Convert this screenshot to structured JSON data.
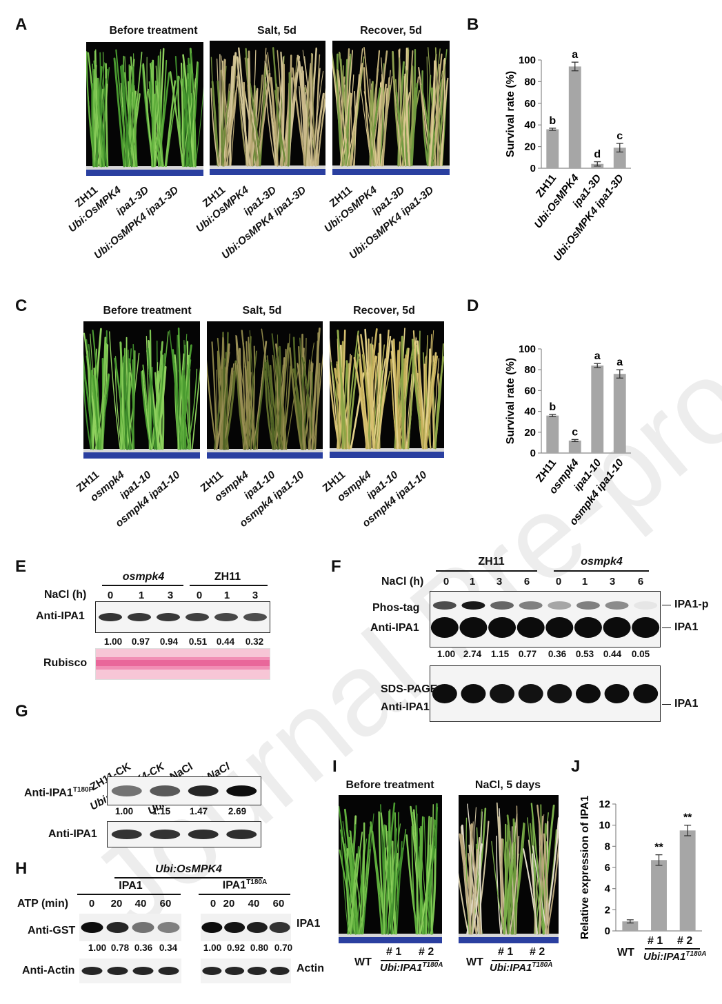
{
  "watermark": "Journal Pre-proof",
  "panels": {
    "A": {
      "label": "A",
      "titles": [
        "Before treatment",
        "Salt, 5d",
        "Recover, 5d"
      ],
      "genotypes": [
        "ZH11",
        "Ubi:OsMPK4",
        "ipa1-3D",
        "Ubi:OsMPK4 ipa1-3D"
      ]
    },
    "B": {
      "label": "B"
    },
    "C": {
      "label": "C",
      "titles": [
        "Before treatment",
        "Salt, 5d",
        "Recover, 5d"
      ],
      "genotypes": [
        "ZH11",
        "osmpk4",
        "ipa1-10",
        "osmpk4 ipa1-10"
      ]
    },
    "D": {
      "label": "D"
    },
    "E": {
      "label": "E",
      "group1": "osmpk4",
      "group2": "ZH11",
      "nacl_label": "NaCl (h)",
      "lanes": [
        "0",
        "1",
        "3",
        "0",
        "1",
        "3"
      ],
      "row1": "Anti-IPA1",
      "quant": [
        "1.00",
        "0.97",
        "0.94",
        "0.51",
        "0.44",
        "0.32"
      ],
      "row2": "Rubisco"
    },
    "F": {
      "label": "F",
      "group1": "ZH11",
      "group2": "osmpk4",
      "nacl_label": "NaCl (h)",
      "lanes": [
        "0",
        "1",
        "3",
        "6",
        "0",
        "1",
        "3",
        "6"
      ],
      "row1a": "Phos-tag",
      "row1b": "Anti-IPA1",
      "right1": "IPA1-p",
      "right2": "IPA1",
      "quant": [
        "1.00",
        "2.74",
        "1.15",
        "0.77",
        "0.36",
        "0.53",
        "0.44",
        "0.05"
      ],
      "row2a": "SDS-PAGE",
      "row2b": "Anti-IPA1",
      "right3": "IPA1"
    },
    "G": {
      "label": "G",
      "lanes": [
        "ZH11-CK",
        "Ubi:OsMPK4-CK",
        "ZH11-NaCl",
        "Ubi:OsMPK4-NaCl"
      ],
      "row1": "Anti-IPA1",
      "row1_sup": "T180P",
      "quant": [
        "1.00",
        "1.15",
        "1.47",
        "2.69"
      ],
      "row2": "Anti-IPA1"
    },
    "H": {
      "label": "H",
      "top": "Ubi:OsMPK4",
      "group1": "IPA1",
      "group2": "IPA1",
      "group2_sup": "T180A",
      "atp_label": "ATP (min)",
      "lanes": [
        "0",
        "20",
        "40",
        "60",
        "0",
        "20",
        "40",
        "60"
      ],
      "row1": "Anti-GST",
      "right1": "IPA1",
      "quant": [
        "1.00",
        "0.78",
        "0.36",
        "0.34",
        "1.00",
        "0.92",
        "0.80",
        "0.70"
      ],
      "row2": "Anti-Actin",
      "right2": "Actin"
    },
    "I": {
      "label": "I",
      "titles": [
        "Before treatment",
        "NaCl, 5 days"
      ],
      "wt": "WT",
      "l1": "# 1",
      "l2": "# 2",
      "line_name": "Ubi:IPA1",
      "line_sup": "T180A"
    },
    "J": {
      "label": "J",
      "wt": "WT",
      "l1": "# 1",
      "l2": "# 2",
      "line_name": "Ubi:IPA1",
      "line_sup": "T180A"
    }
  },
  "chart_data": [
    {
      "panel": "B",
      "type": "bar",
      "ylabel": "Survival rate (%)",
      "categories": [
        "ZH11",
        "Ubi:OsMPK4",
        "ipa1-3D",
        "Ubi:OsMPK4 ipa1-3D"
      ],
      "values": [
        36,
        94,
        4,
        19
      ],
      "errors": [
        1,
        4,
        2,
        4
      ],
      "letters": [
        "b",
        "a",
        "d",
        "c"
      ],
      "ylim": [
        0,
        100
      ],
      "yticks": [
        0,
        20,
        40,
        60,
        80,
        100
      ],
      "bar_color": "#a6a6a6"
    },
    {
      "panel": "D",
      "type": "bar",
      "ylabel": "Survival rate (%)",
      "categories": [
        "ZH11",
        "osmpk4",
        "ipa1-10",
        "osmpk4 ipa1-10"
      ],
      "values": [
        36,
        12,
        84,
        76
      ],
      "errors": [
        1,
        1,
        2,
        4
      ],
      "letters": [
        "b",
        "c",
        "a",
        "a"
      ],
      "ylim": [
        0,
        100
      ],
      "yticks": [
        0,
        20,
        40,
        60,
        80,
        100
      ],
      "bar_color": "#a6a6a6"
    },
    {
      "panel": "J",
      "type": "bar",
      "ylabel": "Relative expression of IPA1",
      "categories": [
        "WT",
        "# 1",
        "# 2"
      ],
      "values": [
        0.9,
        6.7,
        9.5
      ],
      "errors": [
        0.15,
        0.5,
        0.5
      ],
      "letters": [
        "",
        "**",
        "**"
      ],
      "ylim": [
        0,
        12
      ],
      "yticks": [
        0,
        2,
        4,
        6,
        8,
        10,
        12
      ],
      "bar_color": "#a6a6a6"
    }
  ]
}
